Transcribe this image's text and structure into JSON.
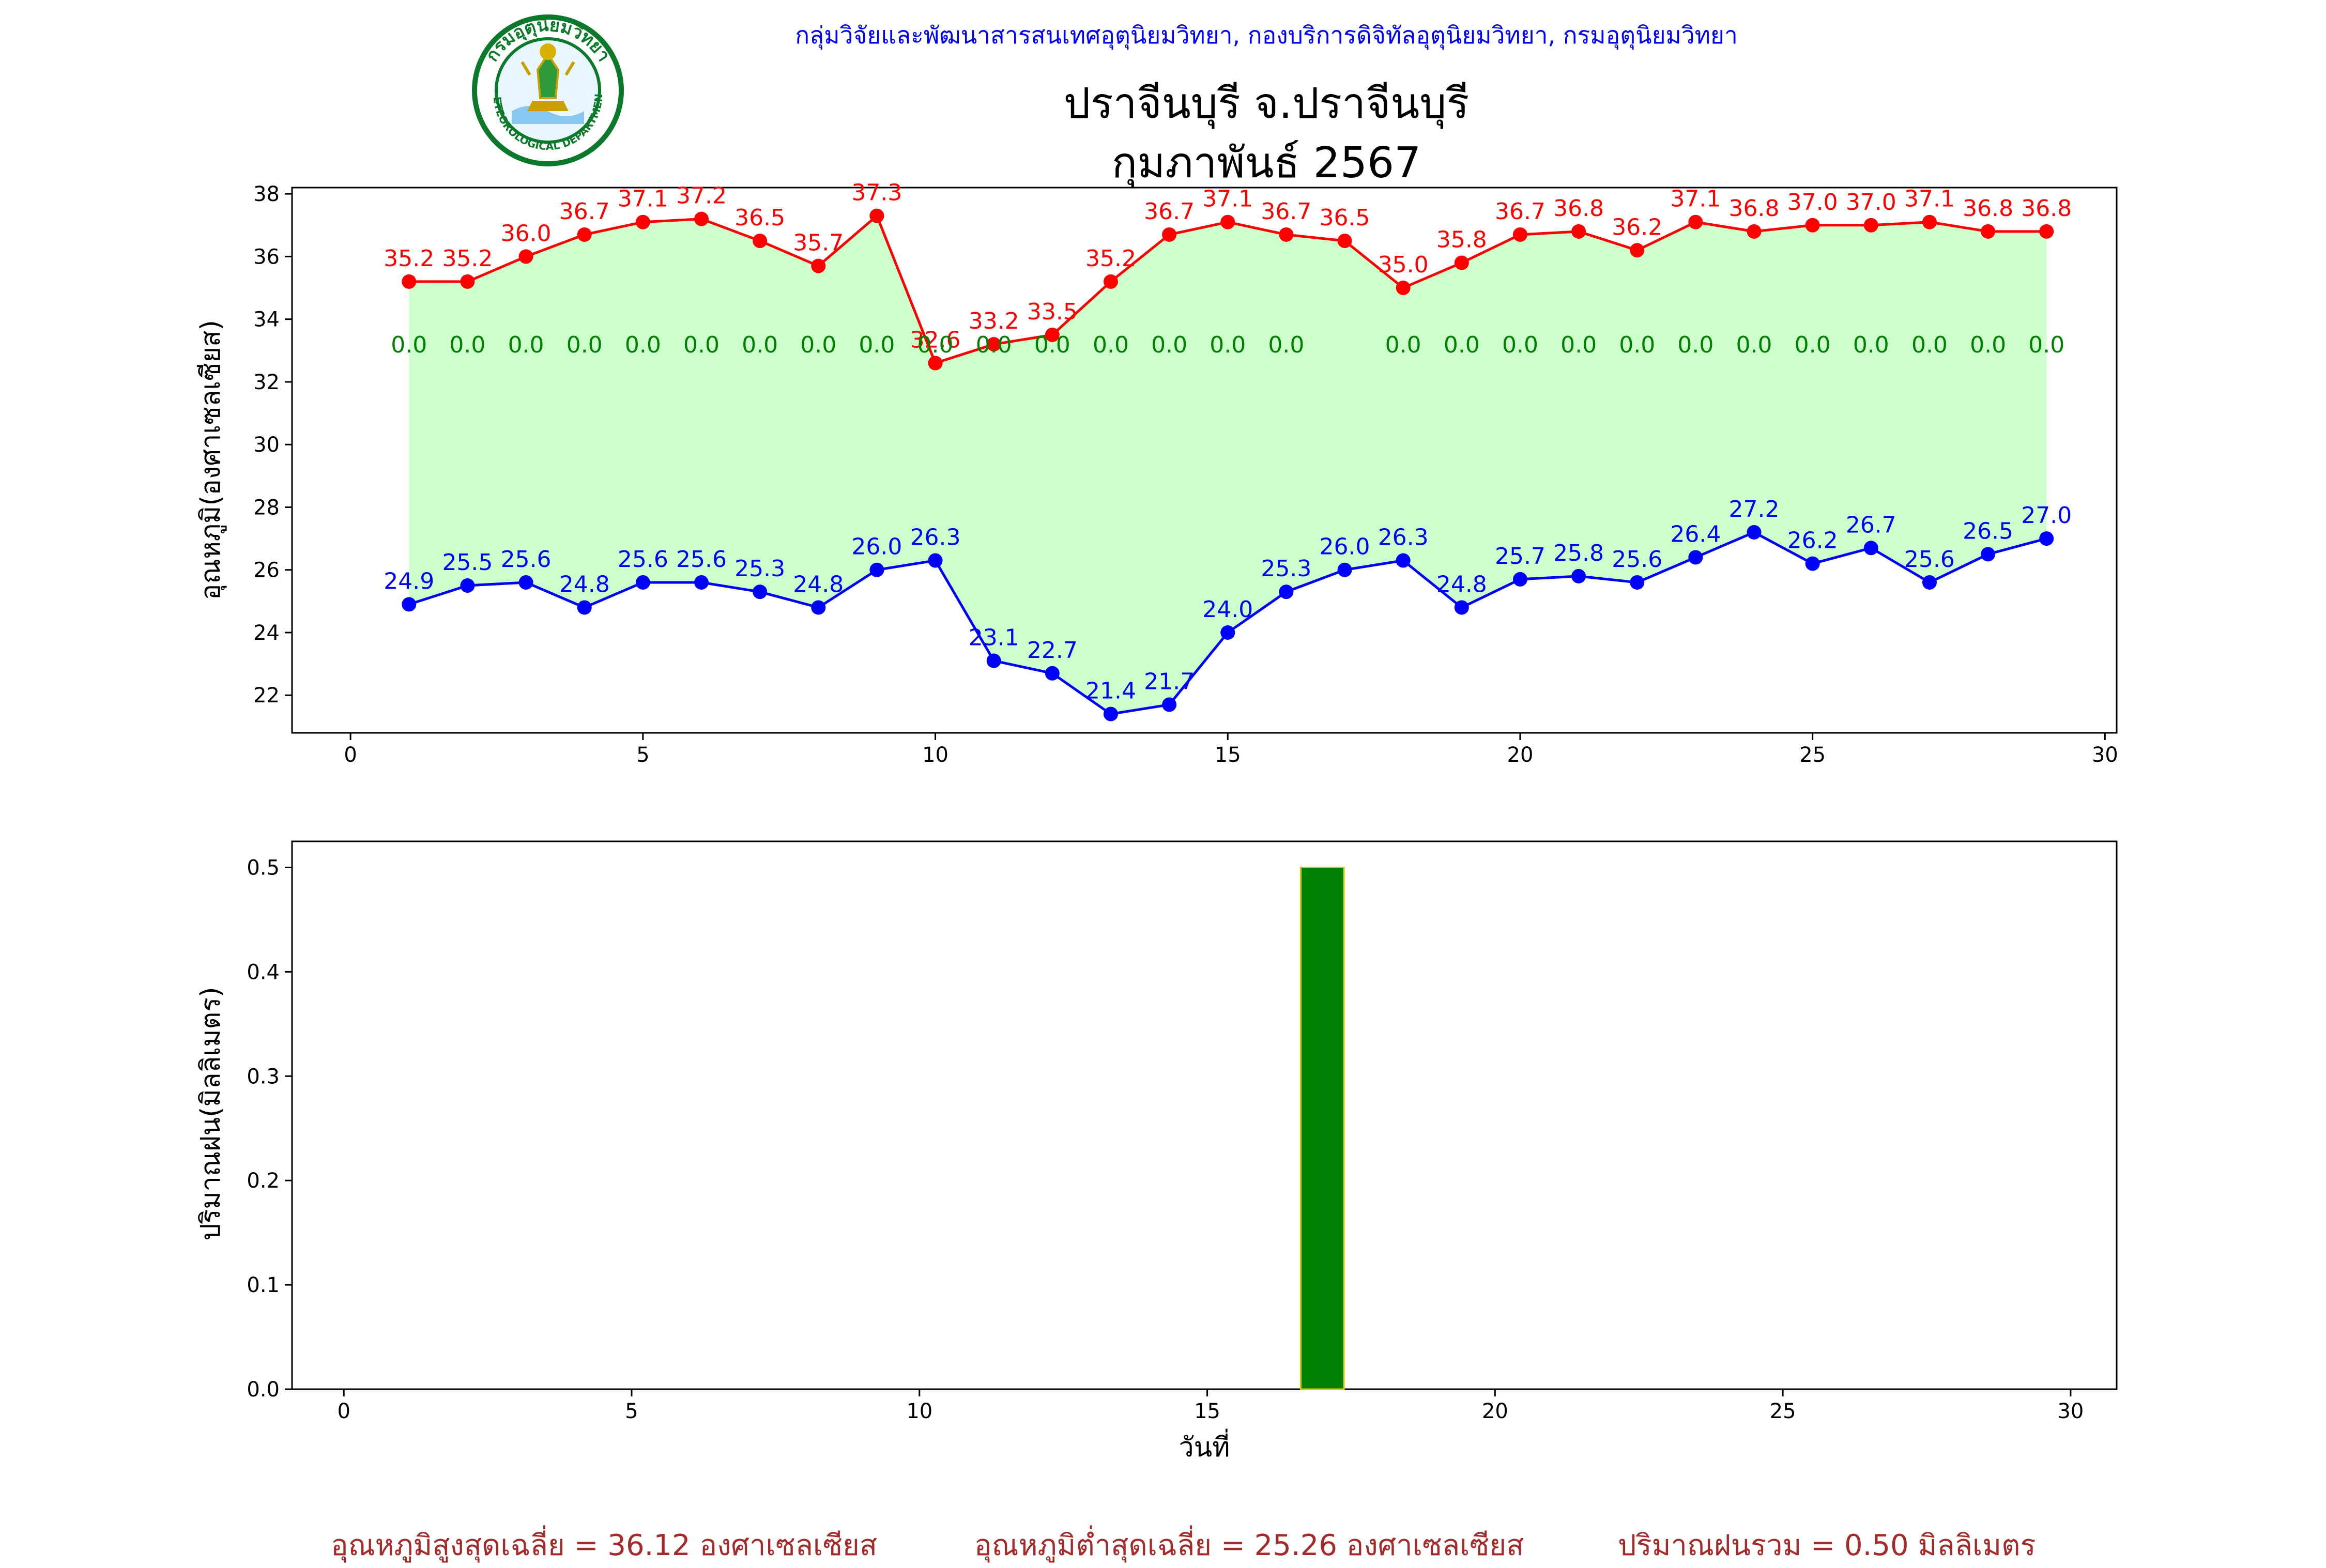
{
  "header": {
    "org": "กลุ่มวิจัยและพัฒนาสารสนเทศอุตุนิยมวิทยา, กองบริการดิจิทัลอุตุนิยมวิทยา, กรมอุตุนิยมวิทยา",
    "station": "ปราจีนบุรี จ.ปราจีนบุรี",
    "month": "กุมภาพันธ์ 2567",
    "logo_text_top": "กรมอุตุนิยมวิทยา",
    "logo_text_bottom": "METEOROLOGICAL DEPARTMENT"
  },
  "colors": {
    "tmax": "#ff0000",
    "tmin": "#0000ff",
    "rain_label": "#008000",
    "fill": "#ccffcc",
    "bar": "#008000",
    "bar_edge": "#cccc00",
    "footer": "#a52a2a"
  },
  "chart_data": [
    {
      "type": "line",
      "ylabel": "อุณหภูมิ(องศาเซลเซียส)",
      "xlabel": "",
      "xlim": [
        -1,
        30.2
      ],
      "ylim": [
        20.8,
        38.2
      ],
      "xticks": [
        "0",
        "5",
        "10",
        "15",
        "20",
        "25",
        "30"
      ],
      "yticks": [
        "22",
        "24",
        "26",
        "28",
        "30",
        "32",
        "34",
        "36",
        "38"
      ],
      "x": [
        1,
        2,
        3,
        4,
        5,
        6,
        7,
        8,
        9,
        10,
        11,
        12,
        13,
        14,
        15,
        16,
        17,
        18,
        19,
        20,
        21,
        22,
        23,
        24,
        25,
        26,
        27,
        28,
        29
      ],
      "series": [
        {
          "key": "tmax",
          "values": [
            35.2,
            35.2,
            36.0,
            36.7,
            37.1,
            37.2,
            36.5,
            35.7,
            37.3,
            32.6,
            33.2,
            33.5,
            35.2,
            36.7,
            37.1,
            36.7,
            36.5,
            35.0,
            35.8,
            36.7,
            36.8,
            36.2,
            37.1,
            36.8,
            37.0,
            37.0,
            37.1,
            36.8,
            36.8
          ],
          "labels": [
            "35.2",
            "35.2",
            "36.0",
            "36.7",
            "37.1",
            "37.2",
            "36.5",
            "35.7",
            "37.3",
            "32.6",
            "33.2",
            "33.5",
            "35.2",
            "36.7",
            "37.1",
            "36.7",
            "36.5",
            "35.0",
            "35.8",
            "36.7",
            "36.8",
            "36.2",
            "37.1",
            "36.8",
            "37.0",
            "37.0",
            "37.1",
            "36.8",
            "36.8"
          ]
        },
        {
          "key": "tmin",
          "values": [
            24.9,
            25.5,
            25.6,
            24.8,
            25.6,
            25.6,
            25.3,
            24.8,
            26.0,
            26.3,
            23.1,
            22.7,
            21.4,
            21.7,
            24.0,
            25.3,
            26.0,
            26.3,
            24.8,
            25.7,
            25.8,
            25.6,
            26.4,
            27.2,
            26.2,
            26.7,
            25.6,
            26.5,
            27.0
          ],
          "labels": [
            "24.9",
            "25.5",
            "25.6",
            "24.8",
            "25.6",
            "25.6",
            "25.3",
            "24.8",
            "26.0",
            "26.3",
            "23.1",
            "22.7",
            "21.4",
            "21.7",
            "24.0",
            "25.3",
            "26.0",
            "26.3",
            "24.8",
            "25.7",
            "25.8",
            "25.6",
            "26.4",
            "27.2",
            "26.2",
            "26.7",
            "25.6",
            "26.5",
            "27.0"
          ]
        }
      ],
      "rain_annotations": {
        "y": 33.2,
        "x": [
          1,
          2,
          3,
          4,
          5,
          6,
          7,
          8,
          9,
          10,
          11,
          12,
          13,
          14,
          15,
          16,
          18,
          19,
          20,
          21,
          22,
          23,
          24,
          25,
          26,
          27,
          28,
          29
        ],
        "labels": [
          "0.0",
          "0.0",
          "0.0",
          "0.0",
          "0.0",
          "0.0",
          "0.0",
          "0.0",
          "0.0",
          "0.0",
          "0.0",
          "0.0",
          "0.0",
          "0.0",
          "0.0",
          "0.0",
          "0.0",
          "0.0",
          "0.0",
          "0.0",
          "0.0",
          "0.0",
          "0.0",
          "0.0",
          "0.0",
          "0.0",
          "0.0",
          "0.0"
        ]
      },
      "grid": false
    },
    {
      "type": "bar",
      "ylabel": "ปริมาณฝน(มิลลิเมตร)",
      "xlabel": "วันที่",
      "xlim": [
        -0.9,
        30.8
      ],
      "ylim": [
        0,
        0.525
      ],
      "xticks": [
        "0",
        "5",
        "10",
        "15",
        "20",
        "25",
        "30"
      ],
      "yticks": [
        "0.0",
        "0.1",
        "0.2",
        "0.3",
        "0.4",
        "0.5"
      ],
      "x": [
        1,
        2,
        3,
        4,
        5,
        6,
        7,
        8,
        9,
        10,
        11,
        12,
        13,
        14,
        15,
        16,
        17,
        18,
        19,
        20,
        21,
        22,
        23,
        24,
        25,
        26,
        27,
        28,
        29
      ],
      "values": [
        0,
        0,
        0,
        0,
        0,
        0,
        0,
        0,
        0,
        0,
        0,
        0,
        0,
        0,
        0,
        0,
        0.5,
        0,
        0,
        0,
        0,
        0,
        0,
        0,
        0,
        0,
        0,
        0,
        0
      ],
      "grid": false
    }
  ],
  "footer": {
    "tmax_avg": "อุณหภูมิสูงสุดเฉลี่ย = 36.12 องศาเซลเซียส",
    "tmin_avg": "อุณหภูมิต่ำสุดเฉลี่ย = 25.26 องศาเซลเซียส",
    "rain_total": "ปริมาณฝนรวม = 0.50 มิลลิเมตร"
  }
}
